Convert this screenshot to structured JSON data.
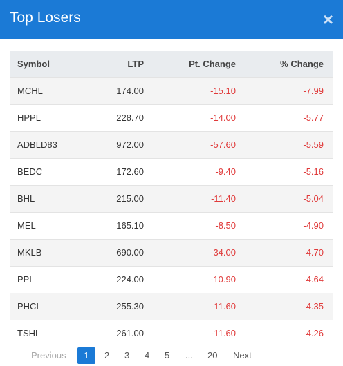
{
  "header": {
    "title": "Top Losers",
    "close": "×"
  },
  "table": {
    "columns": [
      "Symbol",
      "LTP",
      "Pt. Change",
      "% Change"
    ],
    "rows": [
      [
        "MCHL",
        "174.00",
        "-15.10",
        "-7.99"
      ],
      [
        "HPPL",
        "228.70",
        "-14.00",
        "-5.77"
      ],
      [
        "ADBLD83",
        "972.00",
        "-57.60",
        "-5.59"
      ],
      [
        "BEDC",
        "172.60",
        "-9.40",
        "-5.16"
      ],
      [
        "BHL",
        "215.00",
        "-11.40",
        "-5.04"
      ],
      [
        "MEL",
        "165.10",
        "-8.50",
        "-4.90"
      ],
      [
        "MKLB",
        "690.00",
        "-34.00",
        "-4.70"
      ],
      [
        "PPL",
        "224.00",
        "-10.90",
        "-4.64"
      ],
      [
        "PHCL",
        "255.30",
        "-11.60",
        "-4.35"
      ],
      [
        "TSHL",
        "261.00",
        "-11.60",
        "-4.26"
      ]
    ]
  },
  "pagination": [
    "Previous",
    "1",
    "2",
    "3",
    "4",
    "5",
    "...",
    "20",
    "Next"
  ]
}
